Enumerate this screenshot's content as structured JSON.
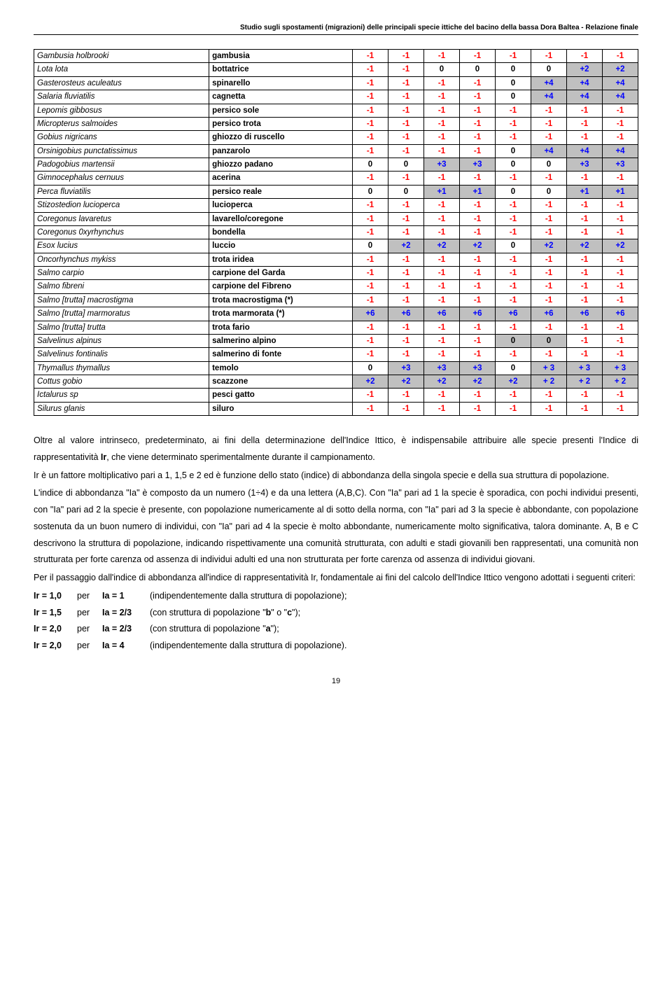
{
  "header": "Studio sugli spostamenti (migrazioni) delle principali specie ittiche del bacino della bassa Dora Baltea - Relazione finale",
  "colors": {
    "highlight": "#c0c0c0",
    "neg": "#ff0000",
    "pos": "#0000ff",
    "zero": "#000000"
  },
  "rows": [
    {
      "sci": "Gambusia holbrooki",
      "com": "gambusia",
      "v": [
        "-1",
        "-1",
        "-1",
        "-1",
        "-1",
        "-1",
        "-1",
        "-1"
      ],
      "hl": []
    },
    {
      "sci": "Lota lota",
      "com": "bottatrice",
      "v": [
        "-1",
        "-1",
        "0",
        "0",
        "0",
        "0",
        "+2",
        "+2"
      ],
      "hl": [
        6,
        7
      ]
    },
    {
      "sci": "Gasterosteus aculeatus",
      "com": "spinarello",
      "v": [
        "-1",
        "-1",
        "-1",
        "-1",
        "0",
        "+4",
        "+4",
        "+4"
      ],
      "hl": [
        5,
        6,
        7
      ]
    },
    {
      "sci": "Salaria fluviatilis",
      "com": "cagnetta",
      "v": [
        "-1",
        "-1",
        "-1",
        "-1",
        "0",
        "+4",
        "+4",
        "+4"
      ],
      "hl": [
        5,
        6,
        7
      ]
    },
    {
      "sci": "Lepomis gibbosus",
      "com": "persico sole",
      "v": [
        "-1",
        "-1",
        "-1",
        "-1",
        "-1",
        "-1",
        "-1",
        "-1"
      ],
      "hl": []
    },
    {
      "sci": "Micropterus salmoides",
      "com": "persico trota",
      "v": [
        "-1",
        "-1",
        "-1",
        "-1",
        "-1",
        "-1",
        "-1",
        "-1"
      ],
      "hl": []
    },
    {
      "sci": "Gobius nigricans",
      "com": "ghiozzo di ruscello",
      "v": [
        "-1",
        "-1",
        "-1",
        "-1",
        "-1",
        "-1",
        "-1",
        "-1"
      ],
      "hl": []
    },
    {
      "sci": "Orsinigobius punctatissimus",
      "com": "panzarolo",
      "v": [
        "-1",
        "-1",
        "-1",
        "-1",
        "0",
        "+4",
        "+4",
        "+4"
      ],
      "hl": [
        5,
        6,
        7
      ]
    },
    {
      "sci": "Padogobius martensii",
      "com": "ghiozzo padano",
      "v": [
        "0",
        "0",
        "+3",
        "+3",
        "0",
        "0",
        "+3",
        "+3"
      ],
      "hl": [
        2,
        3,
        6,
        7
      ]
    },
    {
      "sci": "Gimnocephalus cernuus",
      "com": "acerina",
      "v": [
        "-1",
        "-1",
        "-1",
        "-1",
        "-1",
        "-1",
        "-1",
        "-1"
      ],
      "hl": []
    },
    {
      "sci": "Perca fluviatilis",
      "com": "persico reale",
      "v": [
        "0",
        "0",
        "+1",
        "+1",
        "0",
        "0",
        "+1",
        "+1"
      ],
      "hl": [
        2,
        3,
        6,
        7
      ]
    },
    {
      "sci": "Stizostedion lucioperca",
      "com": "lucioperca",
      "v": [
        "-1",
        "-1",
        "-1",
        "-1",
        "-1",
        "-1",
        "-1",
        "-1"
      ],
      "hl": []
    },
    {
      "sci": "Coregonus lavaretus",
      "com": "lavarello/coregone",
      "v": [
        "-1",
        "-1",
        "-1",
        "-1",
        "-1",
        "-1",
        "-1",
        "-1"
      ],
      "hl": []
    },
    {
      "sci": "Coregonus 0xyrhynchus",
      "com": "bondella",
      "v": [
        "-1",
        "-1",
        "-1",
        "-1",
        "-1",
        "-1",
        "-1",
        "-1"
      ],
      "hl": []
    },
    {
      "sci": "Esox lucius",
      "com": "luccio",
      "v": [
        "0",
        "+2",
        "+2",
        "+2",
        "0",
        "+2",
        "+2",
        "+2"
      ],
      "hl": [
        1,
        2,
        3,
        5,
        6,
        7
      ]
    },
    {
      "sci": "Oncorhynchus mykiss",
      "com": "trota iridea",
      "v": [
        "-1",
        "-1",
        "-1",
        "-1",
        "-1",
        "-1",
        "-1",
        "-1"
      ],
      "hl": []
    },
    {
      "sci": "Salmo carpio",
      "com": "carpione del Garda",
      "v": [
        "-1",
        "-1",
        "-1",
        "-1",
        "-1",
        "-1",
        "-1",
        "-1"
      ],
      "hl": []
    },
    {
      "sci": "Salmo fibreni",
      "com": "carpione del Fibreno",
      "v": [
        "-1",
        "-1",
        "-1",
        "-1",
        "-1",
        "-1",
        "-1",
        "-1"
      ],
      "hl": []
    },
    {
      "sci": "Salmo [trutta] macrostigma",
      "com": "trota macrostigma (*)",
      "v": [
        "-1",
        "-1",
        "-1",
        "-1",
        "-1",
        "-1",
        "-1",
        "-1"
      ],
      "hl": []
    },
    {
      "sci": "Salmo [trutta] marmoratus",
      "com": "trota marmorata (*)",
      "v": [
        "+6",
        "+6",
        "+6",
        "+6",
        "+6",
        "+6",
        "+6",
        "+6"
      ],
      "hl": [
        0,
        1,
        2,
        3,
        4,
        5,
        6,
        7
      ]
    },
    {
      "sci": "Salmo [trutta] trutta",
      "com": "trota fario",
      "v": [
        "-1",
        "-1",
        "-1",
        "-1",
        "-1",
        "-1",
        "-1",
        "-1"
      ],
      "hl": []
    },
    {
      "sci": "Salvelinus alpinus",
      "com": "salmerino alpino",
      "v": [
        "-1",
        "-1",
        "-1",
        "-1",
        "0",
        "0",
        "-1",
        "-1"
      ],
      "hl": [
        4,
        5
      ]
    },
    {
      "sci": "Salvelinus fontinalis",
      "com": "salmerino di fonte",
      "v": [
        "-1",
        "-1",
        "-1",
        "-1",
        "-1",
        "-1",
        "-1",
        "-1"
      ],
      "hl": []
    },
    {
      "sci": "Thymallus thymallus",
      "com": "temolo",
      "v": [
        "0",
        "+3",
        "+3",
        "+3",
        "0",
        "+ 3",
        "+ 3",
        "+ 3"
      ],
      "hl": [
        1,
        2,
        3,
        5,
        6,
        7
      ]
    },
    {
      "sci": "Cottus gobio",
      "com": "scazzone",
      "v": [
        "+2",
        "+2",
        "+2",
        "+2",
        "+2",
        "+ 2",
        "+ 2",
        "+ 2"
      ],
      "hl": [
        0,
        1,
        2,
        3,
        4,
        5,
        6,
        7
      ]
    },
    {
      "sci": "Ictalurus sp",
      "com": "pesci gatto",
      "sciNoItalic": [
        "sp"
      ],
      "v": [
        "-1",
        "-1",
        "-1",
        "-1",
        "-1",
        "-1",
        "-1",
        "-1"
      ],
      "hl": []
    },
    {
      "sci": "Silurus glanis",
      "com": "siluro",
      "v": [
        "-1",
        "-1",
        "-1",
        "-1",
        "-1",
        "-1",
        "-1",
        "-1"
      ],
      "hl": []
    }
  ],
  "paragraphs": [
    "Oltre al valore intrinseco, predeterminato, ai fini della determinazione dell'Indice Ittico, è indispensabile attribuire alle specie presenti l'Indice di rappresentatività <b>Ir</b>, che viene determinato sperimentalmente durante il campionamento.",
    "Ir è un fattore moltiplicativo pari a 1, 1,5 e 2 ed è funzione dello stato (indice) di abbondanza della singola specie e della sua struttura di popolazione.",
    "L'indice di abbondanza \"Ia\" è composto da un numero (1÷4) e da una lettera (A,B,C). Con \"Ia\" pari ad 1 la specie è sporadica, con pochi individui presenti, con \"Ia\" pari ad 2 la specie è presente, con popolazione numericamente al di sotto della norma, con \"Ia\" pari ad 3 la specie è abbondante, con popolazione sostenuta da un buon numero di individui, con \"Ia\" pari ad 4 la specie è molto abbondante, numericamente molto significativa, talora dominante. A, B e C descrivono la struttura di popolazione, indicando rispettivamente una comunità strutturata, con adulti e stadi giovanili ben rappresentati, una comunità non strutturata per forte carenza od assenza di individui adulti ed una non strutturata per forte carenza od assenza di individui giovani.",
    "Per il passaggio dall'indice di abbondanza all'indice di rappresentatività Ir, fondamentale ai fini del calcolo dell'Indice Ittico vengono adottati i seguenti criteri:"
  ],
  "criteria": [
    {
      "ir": "Ir = 1,0",
      "per": "per",
      "ia": "Ia = 1",
      "desc": "(indipendentemente dalla struttura di popolazione);"
    },
    {
      "ir": "Ir = 1,5",
      "per": "per",
      "ia": "Ia = 2/3",
      "desc": "(con struttura di popolazione \"<b>b</b>\" o \"<b>c</b>\");"
    },
    {
      "ir": "Ir = 2,0",
      "per": "per",
      "ia": "Ia = 2/3",
      "desc": "(con struttura di popolazione \"<b>a</b>\");"
    },
    {
      "ir": "Ir = 2,0",
      "per": "per",
      "ia": "Ia = 4",
      "desc": "(indipendentemente dalla struttura di popolazione)."
    }
  ],
  "page_number": "19"
}
